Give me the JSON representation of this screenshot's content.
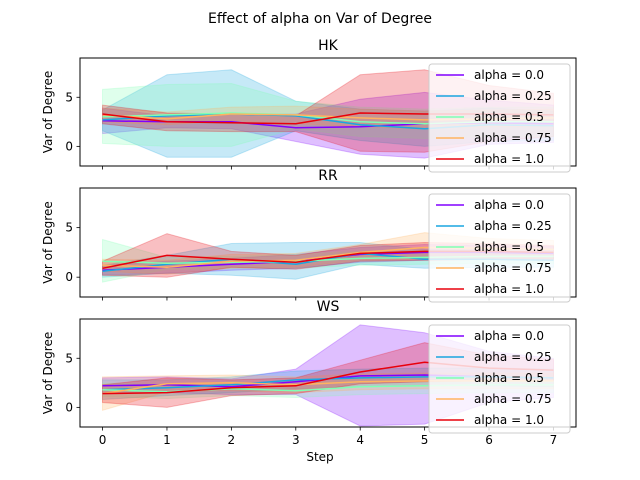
{
  "chart_data": {
    "type": "line",
    "suptitle": "Effect of alpha on  Var of Degree",
    "xlabel": "Step",
    "ylabel": "Var of Degree",
    "x": [
      0,
      1,
      2,
      3,
      4,
      5,
      6,
      7
    ],
    "xlim": [
      -0.35,
      7.35
    ],
    "ylim": [
      -2,
      9
    ],
    "xticks": [
      "0",
      "1",
      "2",
      "3",
      "4",
      "5",
      "6",
      "7"
    ],
    "yticks": [
      "0",
      "5"
    ],
    "legend_location": "upper right",
    "series_style": [
      {
        "name": "alpha = 0.0",
        "color": "#8000ff"
      },
      {
        "name": "alpha = 0.25",
        "color": "#1aa6e0"
      },
      {
        "name": "alpha = 0.5",
        "color": "#80ffb4"
      },
      {
        "name": "alpha = 0.75",
        "color": "#ffb360"
      },
      {
        "name": "alpha = 1.0",
        "color": "#e8000b"
      }
    ],
    "panels": [
      {
        "title": "HK",
        "series": [
          {
            "name": "alpha = 0.0",
            "mean": [
              2.6,
              2.5,
              2.5,
              1.9,
              2.0,
              2.3,
              2.4,
              2.3
            ],
            "lower": [
              1.3,
              1.9,
              1.8,
              0.5,
              -0.8,
              -1.2,
              0.2,
              0.4
            ],
            "upper": [
              3.9,
              3.1,
              3.3,
              3.3,
              4.8,
              5.5,
              4.7,
              4.2
            ]
          },
          {
            "name": "alpha = 0.25",
            "mean": [
              2.7,
              3.1,
              3.3,
              3.1,
              2.2,
              1.8,
              2.2,
              2.1
            ],
            "lower": [
              1.6,
              -1.1,
              -1.1,
              1.6,
              0.6,
              0.0,
              0.5,
              0.6
            ],
            "upper": [
              3.7,
              7.3,
              7.8,
              4.6,
              3.8,
              3.6,
              3.9,
              3.6
            ]
          },
          {
            "name": "alpha = 0.5",
            "mean": [
              3.0,
              3.2,
              3.4,
              3.2,
              2.5,
              2.3,
              2.5,
              2.5
            ],
            "lower": [
              0.3,
              0.0,
              0.0,
              1.8,
              1.0,
              0.8,
              1.0,
              1.0
            ],
            "upper": [
              5.8,
              6.3,
              6.4,
              4.6,
              4.0,
              3.8,
              4.0,
              4.0
            ]
          },
          {
            "name": "alpha = 0.75",
            "mean": [
              3.2,
              2.8,
              3.3,
              3.2,
              2.9,
              2.7,
              2.8,
              2.9
            ],
            "lower": [
              2.5,
              2.2,
              2.6,
              2.3,
              2.0,
              1.8,
              2.0,
              2.0
            ],
            "upper": [
              3.9,
              3.5,
              4.0,
              4.1,
              3.8,
              3.6,
              3.7,
              3.8
            ]
          },
          {
            "name": "alpha = 1.0",
            "mean": [
              3.3,
              2.5,
              2.4,
              2.3,
              3.4,
              3.3,
              3.3,
              3.2
            ],
            "lower": [
              2.3,
              1.6,
              1.5,
              1.5,
              -0.5,
              -0.6,
              0.5,
              1.0
            ],
            "upper": [
              4.2,
              3.4,
              3.3,
              3.1,
              7.3,
              7.8,
              6.2,
              5.4
            ]
          }
        ]
      },
      {
        "title": "RR",
        "series": [
          {
            "name": "alpha = 0.0",
            "mean": [
              0.7,
              1.0,
              1.3,
              1.6,
              2.3,
              2.5,
              2.5,
              2.4
            ],
            "lower": [
              0.2,
              0.4,
              0.7,
              0.9,
              1.5,
              1.7,
              1.8,
              1.7
            ],
            "upper": [
              1.2,
              1.6,
              1.9,
              2.3,
              3.0,
              3.3,
              3.2,
              3.1
            ]
          },
          {
            "name": "alpha = 0.25",
            "mean": [
              0.6,
              1.3,
              1.8,
              1.3,
              2.4,
              1.8,
              1.8,
              1.7
            ],
            "lower": [
              0.0,
              0.4,
              0.2,
              -0.2,
              1.3,
              0.9,
              1.0,
              1.0
            ],
            "upper": [
              1.2,
              2.2,
              3.4,
              3.5,
              3.5,
              2.8,
              2.7,
              2.5
            ]
          },
          {
            "name": "alpha = 0.5",
            "mean": [
              1.6,
              1.4,
              1.5,
              1.6,
              1.9,
              2.0,
              2.1,
              2.1
            ],
            "lower": [
              -0.5,
              0.8,
              0.9,
              0.9,
              1.2,
              1.3,
              1.4,
              1.4
            ],
            "upper": [
              3.8,
              2.0,
              2.1,
              2.3,
              2.6,
              2.7,
              2.8,
              2.8
            ]
          },
          {
            "name": "alpha = 0.75",
            "mean": [
              1.2,
              1.0,
              1.6,
              1.7,
              2.5,
              3.0,
              2.9,
              2.8
            ],
            "lower": [
              0.6,
              0.3,
              0.9,
              1.0,
              1.7,
              1.8,
              1.9,
              1.9
            ],
            "upper": [
              1.8,
              1.7,
              2.3,
              2.4,
              3.3,
              4.5,
              3.9,
              3.7
            ]
          },
          {
            "name": "alpha = 1.0",
            "mean": [
              0.9,
              2.2,
              1.8,
              1.5,
              2.4,
              2.6,
              2.6,
              2.5
            ],
            "lower": [
              0.2,
              0.0,
              1.0,
              0.8,
              1.6,
              1.7,
              1.8,
              1.8
            ],
            "upper": [
              1.6,
              4.4,
              2.6,
              2.2,
              3.2,
              3.5,
              3.4,
              3.2
            ]
          }
        ]
      },
      {
        "title": "WS",
        "series": [
          {
            "name": "alpha = 0.0",
            "mean": [
              2.2,
              2.3,
              2.1,
              2.6,
              3.2,
              3.3,
              3.1,
              3.0
            ],
            "lower": [
              1.4,
              1.5,
              1.3,
              1.3,
              -1.9,
              -1.7,
              0.5,
              1.0
            ],
            "upper": [
              3.0,
              3.1,
              2.9,
              3.9,
              8.4,
              7.6,
              5.7,
              5.0
            ]
          },
          {
            "name": "alpha = 0.25",
            "mean": [
              1.8,
              2.0,
              2.3,
              2.8,
              3.0,
              3.1,
              3.1,
              3.0
            ],
            "lower": [
              0.8,
              1.2,
              1.5,
              1.9,
              2.1,
              2.2,
              2.2,
              2.1
            ],
            "upper": [
              2.8,
              2.8,
              3.1,
              3.7,
              3.9,
              4.0,
              4.0,
              3.9
            ]
          },
          {
            "name": "alpha = 0.5",
            "mean": [
              1.8,
              1.6,
              1.9,
              1.7,
              2.1,
              2.2,
              2.3,
              2.3
            ],
            "lower": [
              1.1,
              0.9,
              1.2,
              1.0,
              1.3,
              1.4,
              1.5,
              1.5
            ],
            "upper": [
              2.5,
              2.3,
              2.6,
              2.4,
              2.9,
              3.0,
              3.1,
              3.1
            ]
          },
          {
            "name": "alpha = 0.75",
            "mean": [
              1.4,
              2.4,
              2.5,
              2.3,
              2.6,
              2.7,
              2.7,
              2.7
            ],
            "lower": [
              -0.3,
              1.6,
              1.7,
              1.5,
              1.8,
              1.9,
              1.9,
              1.9
            ],
            "upper": [
              3.1,
              3.2,
              3.3,
              3.1,
              3.4,
              3.5,
              3.5,
              3.5
            ]
          },
          {
            "name": "alpha = 1.0",
            "mean": [
              1.4,
              1.5,
              2.0,
              2.2,
              3.6,
              4.6,
              4.0,
              3.8
            ],
            "lower": [
              0.5,
              0.0,
              1.2,
              1.4,
              2.4,
              2.6,
              2.7,
              2.7
            ],
            "upper": [
              2.3,
              3.0,
              2.8,
              3.0,
              4.8,
              6.6,
              5.3,
              4.9
            ]
          }
        ]
      }
    ]
  }
}
